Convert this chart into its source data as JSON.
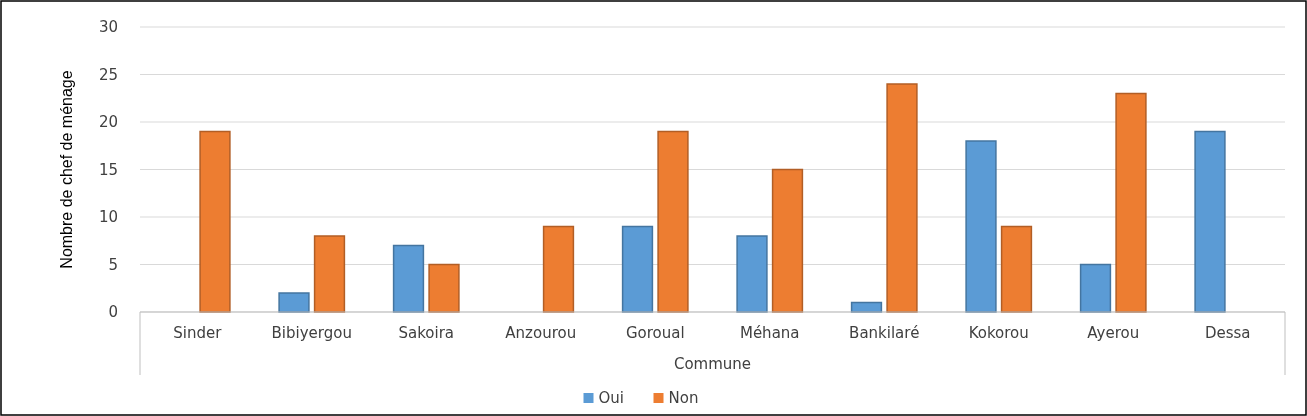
{
  "chart_data": {
    "type": "bar",
    "xlabel": "Commune",
    "ylabel": "Nombre de chef de ménage",
    "categories": [
      "Sinder",
      "Bibiyergou",
      "Sakoira",
      "Anzourou",
      "Goroual",
      "Méhana",
      "Bankilaré",
      "Kokorou",
      "Ayerou",
      "Dessa"
    ],
    "series": [
      {
        "name": "Oui",
        "color": "#5b9bd5",
        "values": [
          0,
          2,
          7,
          0,
          9,
          8,
          1,
          18,
          5,
          19
        ]
      },
      {
        "name": "Non",
        "color": "#ed7d31",
        "values": [
          19,
          8,
          5,
          9,
          19,
          15,
          24,
          9,
          23,
          0
        ]
      }
    ],
    "ylim": [
      0,
      30
    ],
    "yticks": [
      0,
      5,
      10,
      15,
      20,
      25,
      30
    ],
    "grid": "y",
    "legend": "bottom"
  }
}
